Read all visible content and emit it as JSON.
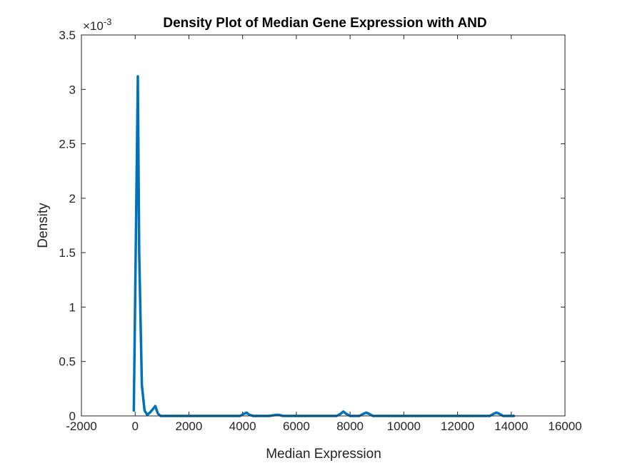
{
  "chart_data": {
    "type": "line",
    "title": "Density Plot of Median Gene Expression with AND",
    "xlabel": "Median Expression",
    "ylabel": "Density",
    "y_exponent_label": "×10",
    "y_exponent_power": "-3",
    "xlim": [
      -2000,
      16000
    ],
    "ylim": [
      0,
      3.5
    ],
    "y_scale_factor": 0.001,
    "x_ticks": [
      -2000,
      0,
      2000,
      4000,
      6000,
      8000,
      10000,
      12000,
      14000,
      16000
    ],
    "x_tick_labels": [
      "-2000",
      "0",
      "2000",
      "4000",
      "6000",
      "8000",
      "10000",
      "12000",
      "14000",
      "16000"
    ],
    "y_ticks": [
      0,
      0.5,
      1,
      1.5,
      2,
      2.5,
      3,
      3.5
    ],
    "y_tick_labels": [
      "0",
      "0.5",
      "1",
      "1.5",
      "2",
      "2.5",
      "3",
      "3.5"
    ],
    "grid": false,
    "line_color": "#0072BD",
    "series": [
      {
        "x": [
          -50,
          100,
          150,
          250,
          350,
          450,
          550,
          650,
          750,
          850,
          950,
          1200,
          2000,
          3000,
          3900,
          4050,
          4150,
          4250,
          4400,
          5000,
          5250,
          5350,
          5500,
          6500,
          7500,
          7650,
          7750,
          7850,
          8000,
          8350,
          8500,
          8600,
          8700,
          8850,
          10000,
          12000,
          13200,
          13350,
          13450,
          13550,
          13700,
          14100
        ],
        "y": [
          0.05,
          3.12,
          1.5,
          0.28,
          0.05,
          0.01,
          0.03,
          0.06,
          0.09,
          0.02,
          0.0,
          0.0,
          0.0,
          0.0,
          0.0,
          0.02,
          0.03,
          0.01,
          0.0,
          0.0,
          0.01,
          0.01,
          0.0,
          0.0,
          0.0,
          0.02,
          0.04,
          0.02,
          0.0,
          0.0,
          0.02,
          0.03,
          0.02,
          0.0,
          0.0,
          0.0,
          0.0,
          0.02,
          0.03,
          0.02,
          0.0,
          0.0
        ]
      }
    ]
  }
}
